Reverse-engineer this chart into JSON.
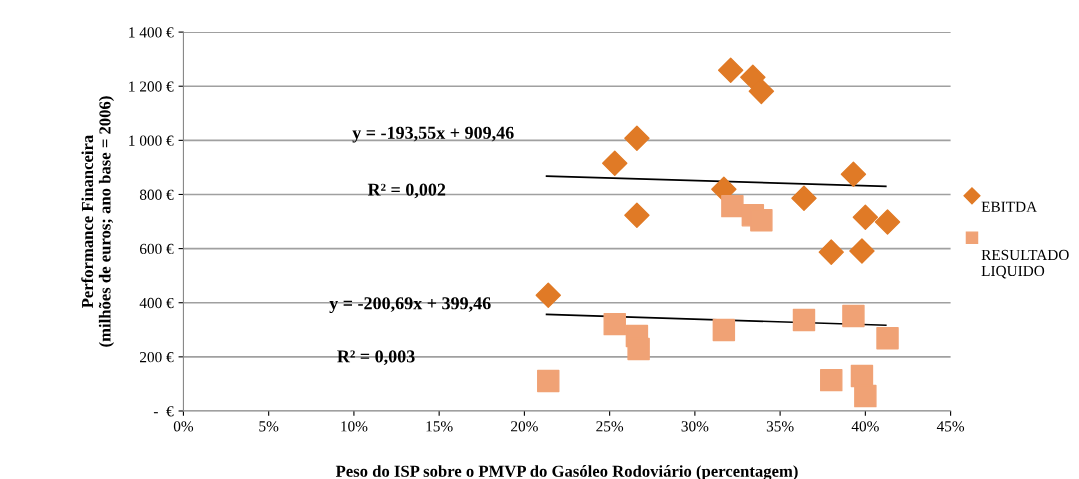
{
  "chart_data": {
    "type": "scatter",
    "xlabel": "Peso do ISP sobre o PMVP do Gasóleo Rodoviário (percentagem)",
    "ylabel": "Performance Financeira\n(milhões de euros; ano base = 2006)",
    "series": [
      {
        "name": "EBITDA",
        "color": "#e07a26",
        "marker": "diamond",
        "x": [
          25.3,
          26.6,
          26.6,
          32.1,
          33.4,
          33.9,
          31.7,
          36.4,
          39.3,
          40.0,
          41.3,
          38.0,
          39.8,
          21.4
        ],
        "values": [
          915,
          1008,
          723,
          1259,
          1233,
          1181,
          819,
          786,
          875,
          716,
          698,
          587,
          591,
          428
        ]
      },
      {
        "name": "RESULTADO\nLIQUIDO",
        "color": "#f0a275",
        "marker": "square",
        "x": [
          21.4,
          25.3,
          26.6,
          26.7,
          31.7,
          32.2,
          33.4,
          33.9,
          36.4,
          39.3,
          41.3,
          38.0,
          39.8,
          40.0
        ],
        "values": [
          111,
          321,
          277,
          229,
          299,
          757,
          723,
          705,
          336,
          351,
          269,
          114,
          129,
          55
        ]
      },
      {
        "type": "line",
        "color": "#000000",
        "marker": "none",
        "x": [
          21.3,
          41.2
        ],
        "values": [
          868,
          830
        ]
      },
      {
        "type": "line",
        "color": "#000000",
        "marker": "none",
        "x": [
          21.3,
          41.2
        ],
        "values": [
          357,
          317
        ]
      }
    ],
    "annotations": [
      "y = -193,55x + 909,46",
      "R² = 0,002",
      "y = -200,69x + 399,46",
      "R² = 0,003"
    ],
    "xlim": [
      0,
      45
    ],
    "xticks": [
      {
        "value": 0,
        "label": "0%"
      },
      {
        "value": 5,
        "label": "5%"
      },
      {
        "value": 10,
        "label": "10%"
      },
      {
        "value": 15,
        "label": "15%"
      },
      {
        "value": 20,
        "label": "20%"
      },
      {
        "value": 25,
        "label": "25%"
      },
      {
        "value": 30,
        "label": "30%"
      },
      {
        "value": 35,
        "label": "35%"
      },
      {
        "value": 40,
        "label": "40%"
      },
      {
        "value": 45,
        "label": "45%"
      }
    ],
    "ylim": [
      0,
      1400
    ],
    "yticks": [
      {
        "value": 0,
        "label": "-  €"
      },
      {
        "value": 200,
        "label": "200 €"
      },
      {
        "value": 400,
        "label": "400 €"
      },
      {
        "value": 600,
        "label": "600 €"
      },
      {
        "value": 800,
        "label": "800 €"
      },
      {
        "value": 1000,
        "label": "1 000 €"
      },
      {
        "value": 1200,
        "label": "1 200 €"
      },
      {
        "value": 1400,
        "label": "1 400 €"
      }
    ],
    "grid": "y",
    "legend": "right"
  }
}
